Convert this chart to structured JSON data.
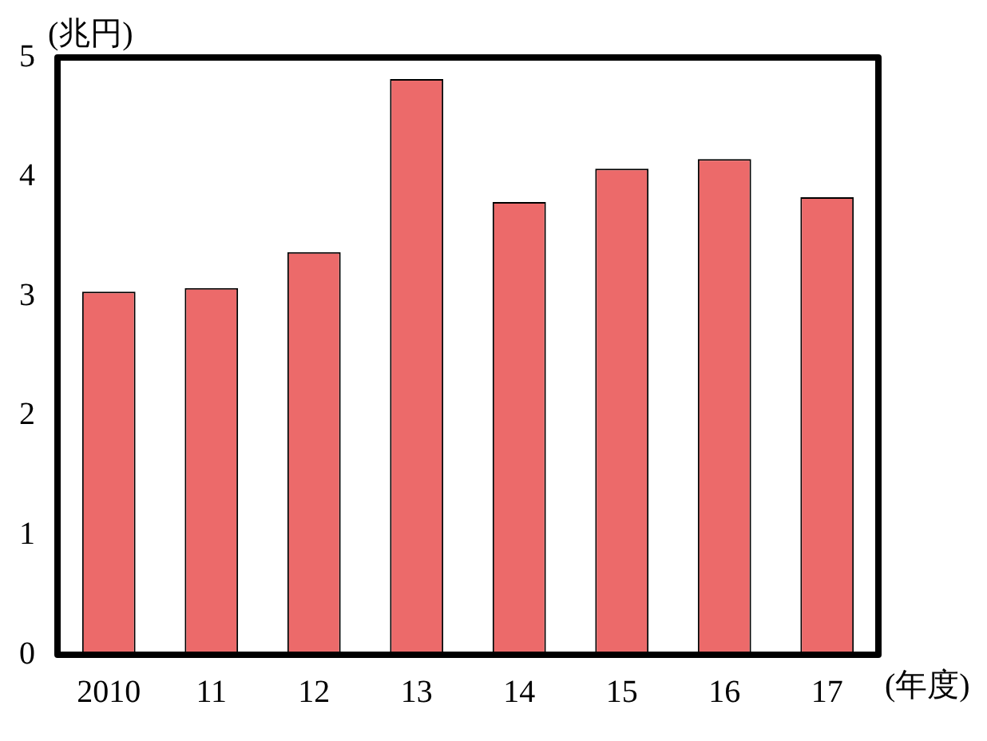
{
  "chart_data": {
    "type": "bar",
    "ylabel": "(兆円)",
    "xlabel": "(年度)",
    "categories": [
      "2010",
      "11",
      "12",
      "13",
      "14",
      "15",
      "16",
      "17"
    ],
    "values": [
      3.04,
      3.07,
      3.37,
      4.82,
      3.79,
      4.07,
      4.15,
      3.83
    ],
    "color": "#ec6a6a",
    "ylim": [
      0,
      5
    ],
    "yticks": [
      0,
      1,
      2,
      3,
      4,
      5
    ],
    "grid": false,
    "legend": false
  }
}
